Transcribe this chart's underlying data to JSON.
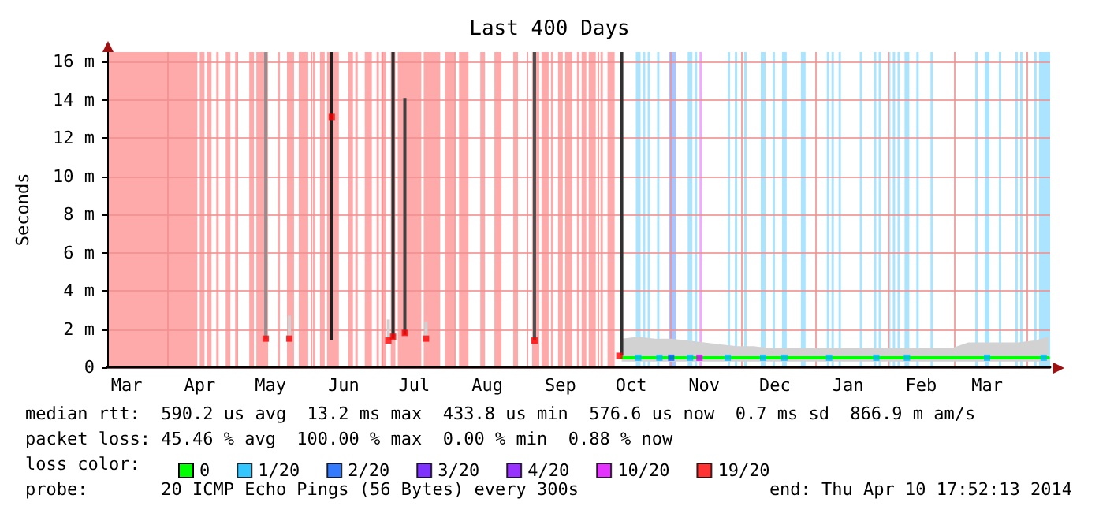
{
  "chart_data": {
    "type": "line",
    "title": "Last 400 Days",
    "ylabel": "Seconds",
    "legend_title": "loss color:",
    "legend": "bottom",
    "grid": true,
    "xlim": [
      "2013-03-06T17:52",
      "2014-04-10T17:52"
    ],
    "xticks": [
      {
        "value": "2013-04-01",
        "label": null
      },
      {
        "value": "2013-05-01",
        "label": null
      },
      {
        "value": "2013-06-01",
        "label": null
      },
      {
        "value": "2013-07-01",
        "label": null
      },
      {
        "value": "2013-08-01",
        "label": null
      },
      {
        "value": "2013-09-01",
        "label": null
      },
      {
        "value": "2013-10-01",
        "label": null
      },
      {
        "value": "2013-11-01",
        "label": null
      },
      {
        "value": "2013-12-01",
        "label": null
      },
      {
        "value": "2014-01-01",
        "label": null
      },
      {
        "value": "2014-02-01",
        "label": null
      },
      {
        "value": "2014-03-01",
        "label": null
      },
      {
        "value": "2014-04-01",
        "label": null
      },
      {
        "value": "2013-03-15",
        "label": "Mar"
      },
      {
        "value": "2013-04-15",
        "label": "Apr"
      },
      {
        "value": "2013-05-15",
        "label": "May"
      },
      {
        "value": "2013-06-15",
        "label": "Jun"
      },
      {
        "value": "2013-07-15",
        "label": "Jul"
      },
      {
        "value": "2013-08-15",
        "label": "Aug"
      },
      {
        "value": "2013-09-15",
        "label": "Sep"
      },
      {
        "value": "2013-10-15",
        "label": "Oct"
      },
      {
        "value": "2013-11-15",
        "label": "Nov"
      },
      {
        "value": "2013-12-15",
        "label": "Dec"
      },
      {
        "value": "2014-01-15",
        "label": "Jan"
      },
      {
        "value": "2014-02-15",
        "label": "Feb"
      },
      {
        "value": "2014-03-15",
        "label": "Mar"
      }
    ],
    "ylim": [
      0,
      16.5
    ],
    "yticks": [
      {
        "value": 0,
        "label": "0"
      },
      {
        "value": 2,
        "label": "2 m"
      },
      {
        "value": 4,
        "label": "4 m"
      },
      {
        "value": 6,
        "label": "6 m"
      },
      {
        "value": 8,
        "label": "8 m"
      },
      {
        "value": 10,
        "label": "10 m"
      },
      {
        "value": 12,
        "label": "12 m"
      },
      {
        "value": 14,
        "label": "14 m"
      },
      {
        "value": 16,
        "label": "16 m"
      }
    ],
    "series": [
      {
        "type": "bar",
        "x": [
          "2013-05-13",
          "2013-05-23",
          "2013-06-10",
          "2013-07-04",
          "2013-07-06",
          "2013-07-11",
          "2013-07-20",
          "2013-09-04",
          "2013-10-11"
        ],
        "base": [
          1.5,
          1.5,
          1.4,
          1.4,
          1.5,
          1.7,
          1.5,
          1.4,
          0.6
        ],
        "values": [
          15,
          1.2,
          15.1,
          1.1,
          15,
          12.4,
          0.9,
          15.1,
          15.9
        ],
        "colors": [
          "#909090",
          "#d0d0d0",
          "#202020",
          "#d0d0d0",
          "#303030",
          "#404040",
          "#d0d0d0",
          "#505050",
          "#303030"
        ]
      },
      {
        "name": "0",
        "color": "#00ff00",
        "marker": "none",
        "x": [
          "2013-10-11",
          "2013-10-18",
          "2013-10-25",
          "2013-11-01",
          "2013-11-08",
          "2013-11-15",
          "2013-11-22",
          "2013-11-29",
          "2013-12-06",
          "2013-12-13",
          "2013-12-20",
          "2013-12-27",
          "2014-01-03",
          "2014-01-10",
          "2014-01-17",
          "2014-01-24",
          "2014-01-31",
          "2014-02-07",
          "2014-02-14",
          "2014-02-21",
          "2014-02-28",
          "2014-03-07",
          "2014-03-14",
          "2014-03-21",
          "2014-03-28",
          "2014-04-04",
          "2014-04-10"
        ],
        "values": [
          0.5,
          0.5,
          0.5,
          0.5,
          0.5,
          0.5,
          0.5,
          0.5,
          0.5,
          0.5,
          0.5,
          0.5,
          0.5,
          0.5,
          0.5,
          0.5,
          0.5,
          0.5,
          0.5,
          0.5,
          0.5,
          0.5,
          0.5,
          0.5,
          0.5,
          0.5,
          0.5
        ],
        "lower": [
          0.3,
          0.3,
          0.3,
          0.3,
          0.3,
          0.3,
          0.3,
          0.3,
          0.3,
          0.3,
          0.3,
          0.3,
          0.3,
          0.3,
          0.3,
          0.3,
          0.3,
          0.3,
          0.3,
          0.3,
          0.3,
          0.3,
          0.3,
          0.3,
          0.3,
          0.3,
          0.3
        ],
        "upper": [
          1.5,
          1.6,
          1.5,
          1.5,
          1.4,
          1.3,
          1.2,
          1.1,
          1.1,
          1,
          1,
          1,
          1,
          1,
          1,
          1,
          1,
          1,
          1,
          1,
          1,
          1.3,
          1.3,
          1.3,
          1.3,
          1.4,
          1.6
        ]
      },
      {
        "name": "1/20",
        "type": "scatter",
        "color": "#00b8ff",
        "x": [
          "2013-10-18",
          "2013-10-27",
          "2013-11-09",
          "2013-11-25",
          "2013-12-10",
          "2013-12-19",
          "2014-01-07",
          "2014-01-27",
          "2014-02-09",
          "2014-03-15",
          "2014-04-08"
        ],
        "values": [
          0.5,
          0.5,
          0.5,
          0.5,
          0.5,
          0.5,
          0.5,
          0.5,
          0.5,
          0.5,
          0.5
        ]
      },
      {
        "name": "2/20",
        "type": "scatter",
        "color": "#0059ff",
        "x": [
          "2013-11-01"
        ],
        "values": [
          0.5
        ]
      },
      {
        "name": "3/20",
        "type": "scatter",
        "color": "#5e00ff"
      },
      {
        "name": "4/20",
        "type": "scatter",
        "color": "#7e00ff"
      },
      {
        "name": "10/20",
        "type": "scatter",
        "color": "#dd00ff",
        "x": [
          "2013-11-13"
        ],
        "values": [
          0.5
        ]
      },
      {
        "name": "19/20",
        "type": "scatter",
        "color": "#ff0000",
        "x": [
          "2013-05-13",
          "2013-05-23",
          "2013-06-10",
          "2013-07-04",
          "2013-07-06",
          "2013-07-11",
          "2013-07-20",
          "2013-09-04",
          "2013-10-10"
        ],
        "values": [
          1.5,
          1.5,
          13.1,
          1.4,
          1.6,
          1.8,
          1.5,
          1.4,
          0.6
        ]
      }
    ],
    "marker": "square",
    "bands": [
      {
        "axis": "x",
        "from": "2013-03-06T17:52",
        "to": "2013-04-14",
        "color": "#ffaaaa"
      },
      {
        "axis": "x",
        "from": "2013-04-15",
        "to": "2013-04-17",
        "color": "#ffaaaa"
      },
      {
        "axis": "x",
        "from": "2013-04-18",
        "to": "2013-04-20",
        "color": "#ffaaaa"
      },
      {
        "axis": "x",
        "from": "2013-04-22",
        "to": "2013-04-23",
        "color": "#ffaaaa"
      },
      {
        "axis": "x",
        "from": "2013-04-26",
        "to": "2013-04-28",
        "color": "#ffaaaa"
      },
      {
        "axis": "x",
        "from": "2013-04-30",
        "to": "2013-05-01",
        "color": "#ffaaaa"
      },
      {
        "axis": "x",
        "from": "2013-05-06",
        "to": "2013-05-08",
        "color": "#ffaaaa"
      },
      {
        "axis": "x",
        "from": "2013-05-09",
        "to": "2013-05-14",
        "color": "#ffaaaa"
      },
      {
        "axis": "x",
        "from": "2013-05-18",
        "to": "2013-05-19",
        "color": "#ffaaaa"
      },
      {
        "axis": "x",
        "from": "2013-05-22",
        "to": "2013-05-25",
        "color": "#ffaaaa"
      },
      {
        "axis": "x",
        "from": "2013-05-27",
        "to": "2013-05-31",
        "color": "#ffaaaa"
      },
      {
        "axis": "x",
        "from": "2013-06-02",
        "to": "2013-06-03",
        "color": "#ffaaaa"
      },
      {
        "axis": "x",
        "from": "2013-06-05",
        "to": "2013-06-07",
        "color": "#ffaaaa"
      },
      {
        "axis": "x",
        "from": "2013-06-08",
        "to": "2013-06-13",
        "color": "#ffaaaa"
      },
      {
        "axis": "x",
        "from": "2013-06-17",
        "to": "2013-06-19",
        "color": "#ffaaaa"
      },
      {
        "axis": "x",
        "from": "2013-06-20",
        "to": "2013-06-21",
        "color": "#ffaaaa"
      },
      {
        "axis": "x",
        "from": "2013-06-24",
        "to": "2013-06-27",
        "color": "#ffaaaa"
      },
      {
        "axis": "x",
        "from": "2013-06-29",
        "to": "2013-06-30",
        "color": "#ffaaaa"
      },
      {
        "axis": "x",
        "from": "2013-07-01",
        "to": "2013-07-03",
        "color": "#ffaaaa"
      },
      {
        "axis": "x",
        "from": "2013-07-05",
        "to": "2013-07-07",
        "color": "#ffaaaa"
      },
      {
        "axis": "x",
        "from": "2013-07-08",
        "to": "2013-07-18",
        "color": "#ffaaaa"
      },
      {
        "axis": "x",
        "from": "2013-07-19",
        "to": "2013-07-26",
        "color": "#ffaaaa"
      },
      {
        "axis": "x",
        "from": "2013-07-28",
        "to": "2013-08-01",
        "color": "#ffaaaa"
      },
      {
        "axis": "x",
        "from": "2013-08-03",
        "to": "2013-08-07",
        "color": "#ffaaaa"
      },
      {
        "axis": "x",
        "from": "2013-08-12",
        "to": "2013-08-14",
        "color": "#ffaaaa"
      },
      {
        "axis": "x",
        "from": "2013-08-18",
        "to": "2013-08-21",
        "color": "#ffaaaa"
      },
      {
        "axis": "x",
        "from": "2013-08-26",
        "to": "2013-08-28",
        "color": "#ffaaaa"
      },
      {
        "axis": "x",
        "from": "2013-09-03",
        "to": "2013-09-06",
        "color": "#ffaaaa"
      },
      {
        "axis": "x",
        "from": "2013-09-07",
        "to": "2013-09-10",
        "color": "#ffaaaa"
      },
      {
        "axis": "x",
        "from": "2013-09-11",
        "to": "2013-09-12",
        "color": "#ffaaaa"
      },
      {
        "axis": "x",
        "from": "2013-09-14",
        "to": "2013-09-16",
        "color": "#ffaaaa"
      },
      {
        "axis": "x",
        "from": "2013-09-17",
        "to": "2013-09-20",
        "color": "#ffaaaa"
      },
      {
        "axis": "x",
        "from": "2013-09-22",
        "to": "2013-09-23",
        "color": "#ffaaaa"
      },
      {
        "axis": "x",
        "from": "2013-09-24",
        "to": "2013-09-26",
        "color": "#ffaaaa"
      },
      {
        "axis": "x",
        "from": "2013-09-27",
        "to": "2013-09-30",
        "color": "#ffaaaa"
      },
      {
        "axis": "x",
        "from": "2013-10-02",
        "to": "2013-10-03",
        "color": "#ffaaaa"
      },
      {
        "axis": "x",
        "from": "2013-10-05",
        "to": "2013-10-08",
        "color": "#ffaaaa"
      },
      {
        "axis": "x",
        "from": "2013-10-17",
        "to": "2013-10-19",
        "color": "#aae4ff"
      },
      {
        "axis": "x",
        "from": "2013-10-20",
        "to": "2013-10-21",
        "color": "#aae4ff"
      },
      {
        "axis": "x",
        "from": "2013-10-22",
        "to": "2013-10-23",
        "color": "#aae4ff"
      },
      {
        "axis": "x",
        "from": "2013-10-26",
        "to": "2013-10-27",
        "color": "#aae4ff"
      },
      {
        "axis": "x",
        "from": "2013-10-31",
        "to": "2013-11-03",
        "color": "#aac4ff"
      },
      {
        "axis": "x",
        "from": "2013-11-08",
        "to": "2013-11-10",
        "color": "#aae4ff"
      },
      {
        "axis": "x",
        "from": "2013-11-11",
        "to": "2013-11-12",
        "color": "#aae4ff"
      },
      {
        "axis": "x",
        "from": "2013-11-13",
        "to": "2013-11-14",
        "color": "#f2aaff"
      },
      {
        "axis": "x",
        "from": "2013-11-25",
        "to": "2013-11-26",
        "color": "#aae4ff"
      },
      {
        "axis": "x",
        "from": "2013-11-28",
        "to": "2013-11-29",
        "color": "#aae4ff"
      },
      {
        "axis": "x",
        "from": "2013-12-02",
        "to": "2013-12-03",
        "color": "#aae4ff"
      },
      {
        "axis": "x",
        "from": "2013-12-09",
        "to": "2013-12-11",
        "color": "#aae4ff"
      },
      {
        "axis": "x",
        "from": "2013-12-14",
        "to": "2013-12-15",
        "color": "#aae4ff"
      },
      {
        "axis": "x",
        "from": "2013-12-18",
        "to": "2013-12-20",
        "color": "#aae4ff"
      },
      {
        "axis": "x",
        "from": "2013-12-26",
        "to": "2013-12-28",
        "color": "#aae4ff"
      },
      {
        "axis": "x",
        "from": "2014-01-06",
        "to": "2014-01-07",
        "color": "#aae4ff"
      },
      {
        "axis": "x",
        "from": "2014-01-08",
        "to": "2014-01-09",
        "color": "#aae4ff"
      },
      {
        "axis": "x",
        "from": "2014-01-11",
        "to": "2014-01-12",
        "color": "#aae4ff"
      },
      {
        "axis": "x",
        "from": "2014-01-20",
        "to": "2014-01-21",
        "color": "#aae4ff"
      },
      {
        "axis": "x",
        "from": "2014-01-26",
        "to": "2014-01-27",
        "color": "#aae4ff"
      },
      {
        "axis": "x",
        "from": "2014-01-28",
        "to": "2014-01-29",
        "color": "#aae4ff"
      },
      {
        "axis": "x",
        "from": "2014-02-01",
        "to": "2014-02-02",
        "color": "#aae4ff"
      },
      {
        "axis": "x",
        "from": "2014-02-03",
        "to": "2014-02-04",
        "color": "#aae4ff"
      },
      {
        "axis": "x",
        "from": "2014-02-05",
        "to": "2014-02-06",
        "color": "#aae4ff"
      },
      {
        "axis": "x",
        "from": "2014-02-08",
        "to": "2014-02-10",
        "color": "#aae4ff"
      },
      {
        "axis": "x",
        "from": "2014-02-13",
        "to": "2014-02-14",
        "color": "#aae4ff"
      },
      {
        "axis": "x",
        "from": "2014-02-19",
        "to": "2014-02-20",
        "color": "#aae4ff"
      },
      {
        "axis": "x",
        "from": "2014-03-10",
        "to": "2014-03-11",
        "color": "#aae4ff"
      },
      {
        "axis": "x",
        "from": "2014-03-14",
        "to": "2014-03-16",
        "color": "#aae4ff"
      },
      {
        "axis": "x",
        "from": "2014-03-20",
        "to": "2014-03-21",
        "color": "#aae4ff"
      },
      {
        "axis": "x",
        "from": "2014-03-27",
        "to": "2014-03-28",
        "color": "#aae4ff"
      },
      {
        "axis": "x",
        "from": "2014-03-29",
        "to": "2014-03-30",
        "color": "#aae4ff"
      },
      {
        "axis": "x",
        "from": "2014-04-04",
        "to": "2014-04-05",
        "color": "#aae4ff"
      },
      {
        "axis": "x",
        "from": "2014-04-06",
        "to": "2014-04-10T17:52",
        "color": "#aae4ff"
      }
    ],
    "annotations": [
      "median rtt:  590.2 us avg  13.2 ms max  433.8 us min  576.6 us now  0.7 ms sd  866.9 m am/s",
      "packet loss: 45.46 % avg  100.00 % max  0.00 % min  0.88 % now",
      "probe:       20 ICMP Echo Pings (56 Bytes) every 300s",
      "end: Thu Apr 10 17:52:13 2014"
    ]
  }
}
